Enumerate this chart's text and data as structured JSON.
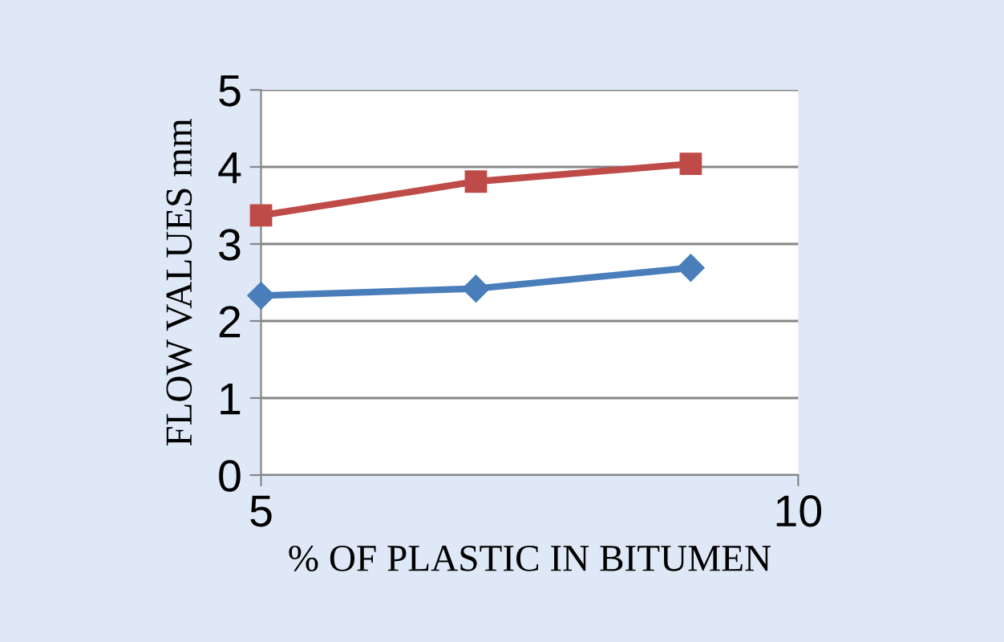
{
  "chart_data": {
    "type": "line",
    "xlabel": "% OF PLASTIC IN BITUMEN",
    "ylabel": "FLOW VALUES mm",
    "x": [
      5,
      7,
      9
    ],
    "series": [
      {
        "color": "#4a7ebb",
        "values": [
          2.33,
          2.42,
          2.69
        ],
        "marker": "diamond"
      },
      {
        "color": "#be4b48",
        "values": [
          3.37,
          3.81,
          4.04
        ],
        "marker": "square"
      }
    ],
    "xlim": [
      5,
      10
    ],
    "xticks": [
      5,
      10
    ],
    "ylim": [
      0,
      5
    ],
    "yticks": [
      0,
      1,
      2,
      3,
      4,
      5
    ],
    "grid": "y"
  }
}
